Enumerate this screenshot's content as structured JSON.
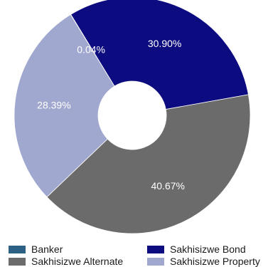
{
  "chart_data": {
    "type": "pie",
    "donut": true,
    "categories": [
      "Banker",
      "Sakhisizwe Bond",
      "Sakhisizwe Alternate",
      "Sakhisizwe Property"
    ],
    "series": [
      {
        "values": [
          0.04,
          30.9,
          40.67,
          28.39
        ]
      }
    ],
    "slice_labels": [
      "0.04%",
      "30.90%",
      "40.67%",
      "28.39%"
    ],
    "colors": [
      "#2c6185",
      "#0c0c80",
      "#6b6b6b",
      "#a1a8cf"
    ],
    "legend_position": "bottom"
  },
  "legend": {
    "items": [
      {
        "label": "Banker",
        "color": "#2c6185"
      },
      {
        "label": "Sakhisizwe Bond",
        "color": "#0c0c80"
      },
      {
        "label": "Sakhisizwe Alternate",
        "color": "#6b6b6b"
      },
      {
        "label": "Sakhisizwe Property",
        "color": "#a1a8cf"
      }
    ]
  }
}
